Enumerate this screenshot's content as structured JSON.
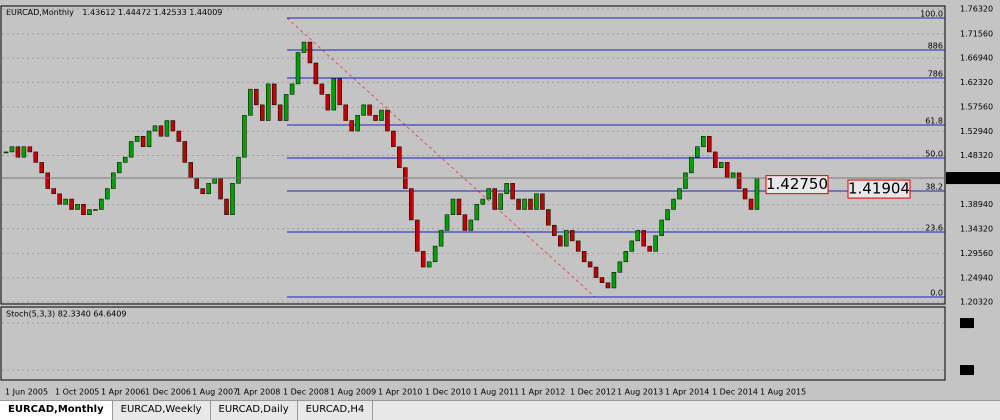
{
  "header": {
    "symbol": "EURCAD,Monthly",
    "ohlc": "1.43612 1.44472 1.42533 1.44009"
  },
  "price_axis": {
    "lim": [
      1.2032,
      1.7632
    ],
    "ticks": [
      {
        "value": 1.7632,
        "label": "1.76320"
      },
      {
        "value": 1.7156,
        "label": "1.71560"
      },
      {
        "value": 1.6694,
        "label": "1.66940"
      },
      {
        "value": 1.6232,
        "label": "1.62320"
      },
      {
        "value": 1.5756,
        "label": "1.57560"
      },
      {
        "value": 1.5294,
        "label": "1.52940"
      },
      {
        "value": 1.4832,
        "label": "1.48320"
      },
      {
        "value": 1.3894,
        "label": "1.38940"
      },
      {
        "value": 1.3432,
        "label": "1.34320"
      },
      {
        "value": 1.2956,
        "label": "1.29560"
      },
      {
        "value": 1.2494,
        "label": "1.24940"
      },
      {
        "value": 1.2032,
        "label": "1.20320"
      }
    ]
  },
  "current_price": 1.44009,
  "candles": {
    "closes": [
      1.49,
      1.5,
      1.48,
      1.5,
      1.49,
      1.47,
      1.45,
      1.42,
      1.41,
      1.39,
      1.4,
      1.38,
      1.39,
      1.37,
      1.38,
      1.38,
      1.4,
      1.42,
      1.45,
      1.47,
      1.48,
      1.51,
      1.52,
      1.5,
      1.53,
      1.54,
      1.52,
      1.55,
      1.53,
      1.51,
      1.47,
      1.44,
      1.42,
      1.41,
      1.43,
      1.44,
      1.4,
      1.37,
      1.43,
      1.48,
      1.56,
      1.61,
      1.58,
      1.55,
      1.62,
      1.58,
      1.55,
      1.6,
      1.62,
      1.68,
      1.7,
      1.66,
      1.62,
      1.6,
      1.57,
      1.63,
      1.58,
      1.55,
      1.53,
      1.56,
      1.58,
      1.56,
      1.55,
      1.57,
      1.53,
      1.5,
      1.46,
      1.42,
      1.36,
      1.3,
      1.27,
      1.28,
      1.31,
      1.34,
      1.37,
      1.4,
      1.37,
      1.34,
      1.36,
      1.39,
      1.4,
      1.42,
      1.38,
      1.41,
      1.43,
      1.4,
      1.38,
      1.4,
      1.38,
      1.41,
      1.38,
      1.35,
      1.33,
      1.31,
      1.34,
      1.32,
      1.3,
      1.28,
      1.27,
      1.25,
      1.24,
      1.23,
      1.26,
      1.28,
      1.3,
      1.32,
      1.34,
      1.31,
      1.3,
      1.33,
      1.36,
      1.38,
      1.4,
      1.42,
      1.45,
      1.48,
      1.5,
      1.52,
      1.49,
      1.46,
      1.47,
      1.44,
      1.45,
      1.42,
      1.4,
      1.38,
      1.44
    ]
  },
  "fibonacci": [
    {
      "label": "100.0",
      "price": 1.746
    },
    {
      "label": "886",
      "price": 1.6849
    },
    {
      "label": "786",
      "price": 1.6313
    },
    {
      "label": "61.8",
      "price": 1.5415
    },
    {
      "label": "50.0",
      "price": 1.4785
    },
    {
      "label": "38.2",
      "price": 1.4154
    },
    {
      "label": "23.6",
      "price": 1.337
    },
    {
      "label": "0.0",
      "price": 1.2128
    }
  ],
  "annotations": [
    {
      "value": 1.4275,
      "label": "1.42750"
    },
    1.41904
  ],
  "stochastic": {
    "title": "Stoch(5,3,3) 82.3340 64.6409",
    "levels": [
      80,
      20
    ]
  },
  "dates": [
    "1 Jun 2005",
    "1 Oct 2005",
    "1 Apr 2006",
    "1 Dec 2006",
    "1 Aug 2007",
    "1 Apr 2008",
    "1 Dec 2008",
    "1 Aug 2009",
    "1 Apr 2010",
    "1 Dec 2010",
    "1 Aug 2011",
    "1 Apr 2012",
    "1 Dec 2012",
    "1 Aug 2013",
    "1 Apr 2014",
    "1 Dec 2014",
    "1 Aug 2015"
  ],
  "tabs": [
    "EURCAD,Monthly",
    "EURCAD,Weekly",
    "EURCAD,Daily",
    "EURCAD,H4"
  ]
}
